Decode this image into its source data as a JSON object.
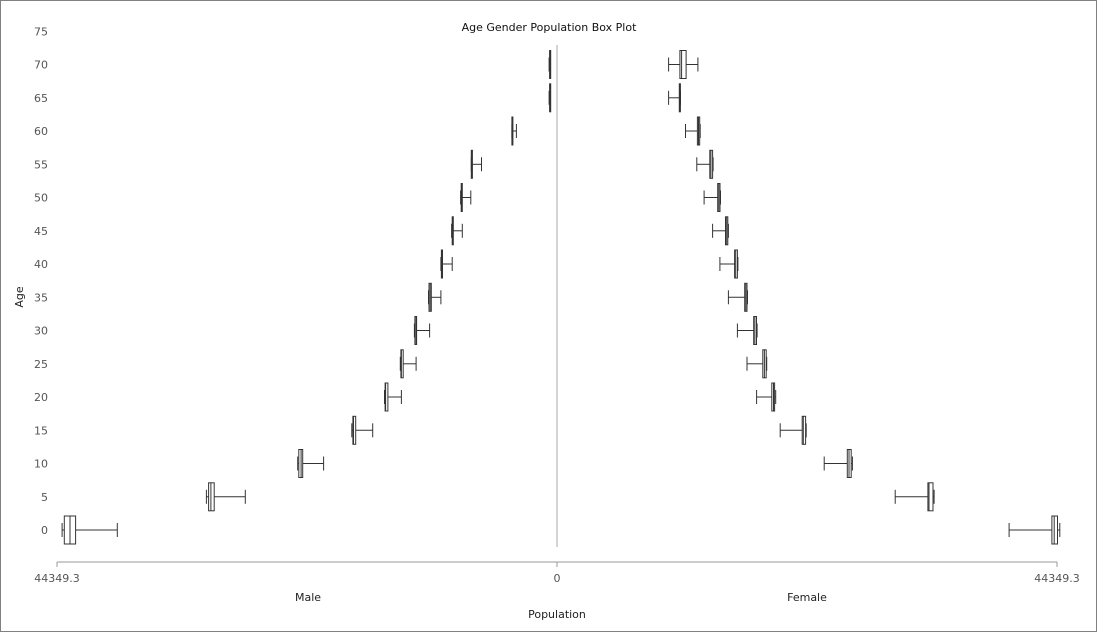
{
  "chart_data": {
    "type": "boxplot",
    "title": "Age Gender Population Box Plot",
    "xlabel": "Population",
    "ylabel": "Age",
    "x_tick_labels": [
      "44349.3",
      "0",
      "44349.3"
    ],
    "x_range": [
      -44349.3,
      44349.3
    ],
    "panel_labels": [
      "Male",
      "Female"
    ],
    "y_ticks": [
      0,
      5,
      10,
      15,
      20,
      25,
      30,
      35,
      40,
      45,
      50,
      55,
      60,
      65,
      70,
      75
    ],
    "y_range": [
      -2,
      77
    ],
    "center_line": true,
    "grid": false,
    "colors": {
      "box_stroke": "#333333",
      "box_fill": "#ffffff",
      "center_line": "#aaaaaa",
      "axis_line": "#999999"
    },
    "series": [
      {
        "name": "Male",
        "boxes": [
          {
            "age": 0,
            "min": 39000,
            "q1": 42700,
            "median": 43200,
            "q3": 43700,
            "max": 43900
          },
          {
            "age": 5,
            "min": 27650,
            "q1": 30400,
            "median": 30700,
            "q3": 30900,
            "max": 31100
          },
          {
            "age": 10,
            "min": 20700,
            "q1": 22550,
            "median": 22700,
            "q3": 22900,
            "max": 23000
          },
          {
            "age": 15,
            "min": 16350,
            "q1": 17850,
            "median": 18050,
            "q3": 18100,
            "max": 18200
          },
          {
            "age": 20,
            "min": 13800,
            "q1": 15000,
            "median": 15200,
            "q3": 15250,
            "max": 15300
          },
          {
            "age": 25,
            "min": 12500,
            "q1": 13650,
            "median": 13800,
            "q3": 13850,
            "max": 13900
          },
          {
            "age": 30,
            "min": 11300,
            "q1": 12450,
            "median": 12500,
            "q3": 12600,
            "max": 12650
          },
          {
            "age": 35,
            "min": 10300,
            "q1": 11150,
            "median": 11250,
            "q3": 11350,
            "max": 11400
          },
          {
            "age": 40,
            "min": 9300,
            "q1": 10150,
            "median": 10200,
            "q3": 10250,
            "max": 10300
          },
          {
            "age": 45,
            "min": 8400,
            "q1": 9200,
            "median": 9250,
            "q3": 9300,
            "max": 9350
          },
          {
            "age": 50,
            "min": 7650,
            "q1": 8400,
            "median": 8450,
            "q3": 8500,
            "max": 8550
          },
          {
            "age": 55,
            "min": 6700,
            "q1": 7500,
            "median": 7550,
            "q3": 7600,
            "max": 7600
          },
          {
            "age": 60,
            "min": 3600,
            "q1": 3950,
            "median": 3950,
            "q3": 4000,
            "max": 4000
          },
          {
            "age": 65,
            "min": 600,
            "q1": 650,
            "median": 650,
            "q3": 650,
            "max": 700
          },
          {
            "age": 70,
            "min": 600,
            "q1": 650,
            "median": 650,
            "q3": 650,
            "max": 700
          }
        ]
      },
      {
        "name": "Female",
        "boxes": [
          {
            "age": 0,
            "min": 40100,
            "q1": 43900,
            "median": 44100,
            "q3": 44400,
            "max": 44600
          },
          {
            "age": 5,
            "min": 30000,
            "q1": 32900,
            "median": 33000,
            "q3": 33350,
            "max": 33450
          },
          {
            "age": 10,
            "min": 23700,
            "q1": 25750,
            "median": 25900,
            "q3": 26100,
            "max": 26200
          },
          {
            "age": 15,
            "min": 19800,
            "q1": 21750,
            "median": 21850,
            "q3": 22050,
            "max": 22100
          },
          {
            "age": 20,
            "min": 17700,
            "q1": 19050,
            "median": 19200,
            "q3": 19300,
            "max": 19400
          },
          {
            "age": 25,
            "min": 16850,
            "q1": 18250,
            "median": 18400,
            "q3": 18550,
            "max": 18600
          },
          {
            "age": 30,
            "min": 16000,
            "q1": 17450,
            "median": 17550,
            "q3": 17700,
            "max": 17750
          },
          {
            "age": 35,
            "min": 15200,
            "q1": 16650,
            "median": 16750,
            "q3": 16850,
            "max": 16900
          },
          {
            "age": 40,
            "min": 14450,
            "q1": 15750,
            "median": 15850,
            "q3": 16000,
            "max": 16050
          },
          {
            "age": 45,
            "min": 13800,
            "q1": 14950,
            "median": 15050,
            "q3": 15150,
            "max": 15200
          },
          {
            "age": 50,
            "min": 13050,
            "q1": 14250,
            "median": 14350,
            "q3": 14450,
            "max": 14500
          },
          {
            "age": 55,
            "min": 12400,
            "q1": 13550,
            "median": 13650,
            "q3": 13800,
            "max": 13850
          },
          {
            "age": 60,
            "min": 11400,
            "q1": 12450,
            "median": 12550,
            "q3": 12650,
            "max": 12700
          },
          {
            "age": 65,
            "min": 9900,
            "q1": 10850,
            "median": 10900,
            "q3": 10950,
            "max": 10950
          },
          {
            "age": 70,
            "min": 9900,
            "q1": 10900,
            "median": 11050,
            "q3": 11450,
            "max": 12500
          }
        ]
      }
    ]
  }
}
